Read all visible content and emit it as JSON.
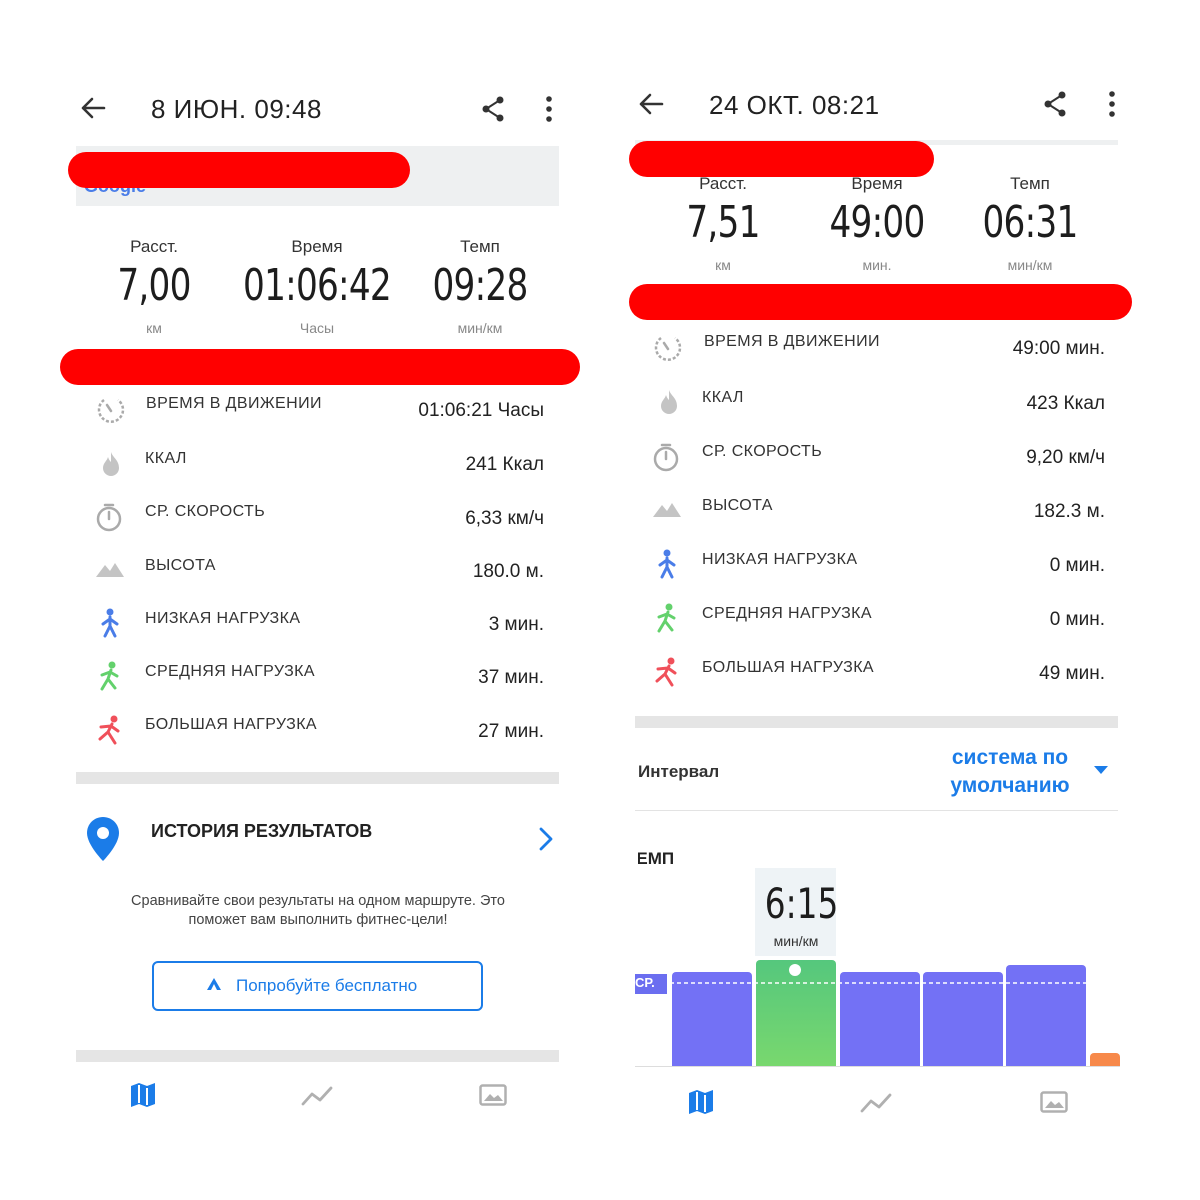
{
  "left": {
    "header": {
      "title": "8 ИЮН. 09:48"
    },
    "map": {
      "logo_text": "Google"
    },
    "stats": [
      {
        "label": "Расст.",
        "value": "7,00",
        "unit": "км"
      },
      {
        "label": "Время",
        "value": "01:06:42",
        "unit": "Часы"
      },
      {
        "label": "Темп",
        "value": "09:28",
        "unit": "мин/км"
      }
    ],
    "details": [
      {
        "icon": "stopwatch-moving-icon",
        "label": "ВРЕМЯ В ДВИЖЕНИИ",
        "value": "01:06:21 Часы"
      },
      {
        "icon": "flame-icon",
        "label": "ККАЛ",
        "value": "241 Ккал"
      },
      {
        "icon": "timer-icon",
        "label": "СР. СКОРОСТЬ",
        "value": "6,33 км/ч"
      },
      {
        "icon": "mountain-icon",
        "label": "ВЫСОТА",
        "value": "180.0 м."
      },
      {
        "icon": "walk-icon",
        "label": "НИЗКАЯ НАГРУЗКА",
        "value": "3 мин."
      },
      {
        "icon": "jog-icon",
        "label": "СРЕДНЯЯ НАГРУЗКА",
        "value": "37 мин."
      },
      {
        "icon": "run-icon",
        "label": "БОЛЬШАЯ НАГРУЗКА",
        "value": "27 мин."
      }
    ],
    "history": {
      "title": "ИСТОРИЯ РЕЗУЛЬТАТОВ",
      "description": "Сравнивайте свои результаты на одном маршруте. Это поможет вам выполнить фитнес-цели!",
      "button_label": "Попробуйте бесплатно"
    }
  },
  "right": {
    "header": {
      "title": "24 ОКТ. 08:21"
    },
    "stats": [
      {
        "label": "Расст.",
        "value": "7,51",
        "unit": "км"
      },
      {
        "label": "Время",
        "value": "49:00",
        "unit": "мин."
      },
      {
        "label": "Темп",
        "value": "06:31",
        "unit": "мин/км"
      }
    ],
    "details": [
      {
        "icon": "stopwatch-moving-icon",
        "label": "ВРЕМЯ В ДВИЖЕНИИ",
        "value": "49:00 мин."
      },
      {
        "icon": "flame-icon",
        "label": "ККАЛ",
        "value": "423 Ккал"
      },
      {
        "icon": "timer-icon",
        "label": "СР. СКОРОСТЬ",
        "value": "9,20 км/ч"
      },
      {
        "icon": "mountain-icon",
        "label": "ВЫСОТА",
        "value": "182.3 м."
      },
      {
        "icon": "walk-icon",
        "label": "НИЗКАЯ НАГРУЗКА",
        "value": "0 мин."
      },
      {
        "icon": "jog-icon",
        "label": "СРЕДНЯЯ НАГРУЗКА",
        "value": "0 мин."
      },
      {
        "icon": "run-icon",
        "label": "БОЛЬШАЯ НАГРУЗКА",
        "value": "49 мин."
      }
    ],
    "interval": {
      "label": "Интервал",
      "value_line1": "система по",
      "value_line2": "умолчанию"
    },
    "chart": {
      "title": "ТЕМП",
      "selected_value": "6:15",
      "selected_unit": "мин/км",
      "avg_tag": "СР."
    }
  },
  "colors": {
    "accent": "#1b7ce8",
    "redaction": "#ff0000",
    "bar_default": "#7371f5",
    "bar_selected": "#5fd27a",
    "bar_partial": "#f7894a"
  }
}
